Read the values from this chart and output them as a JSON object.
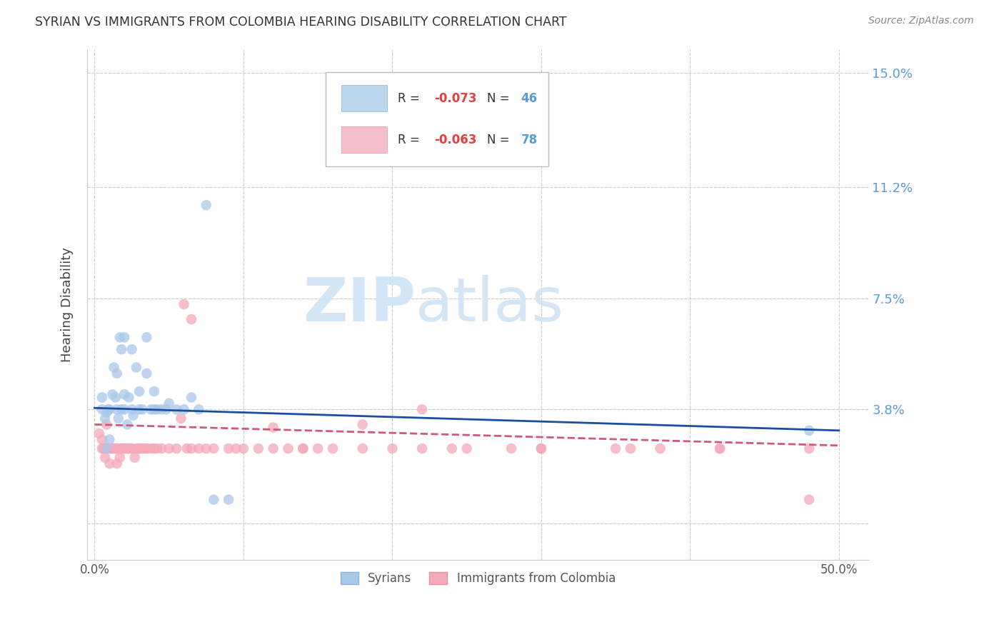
{
  "title": "SYRIAN VS IMMIGRANTS FROM COLOMBIA HEARING DISABILITY CORRELATION CHART",
  "source": "Source: ZipAtlas.com",
  "ylabel": "Hearing Disability",
  "yticks": [
    0.0,
    0.038,
    0.075,
    0.112,
    0.15
  ],
  "ytick_labels": [
    "",
    "3.8%",
    "7.5%",
    "11.2%",
    "15.0%"
  ],
  "xticks": [
    0.0,
    0.1,
    0.2,
    0.3,
    0.4,
    0.5
  ],
  "xtick_labels": [
    "0.0%",
    "",
    "",
    "",
    "",
    "50.0%"
  ],
  "xlim": [
    -0.005,
    0.52
  ],
  "ylim": [
    -0.012,
    0.158
  ],
  "syrians_color": "#a8c8e8",
  "colombia_color": "#f4a8b8",
  "trend_blue": "#1a4fa0",
  "trend_pink": "#d05878",
  "watermark_color": "#d0e4f4",
  "syrians_label": "Syrians",
  "colombia_label": "Immigrants from Colombia",
  "sy_trend_x": [
    0.0,
    0.5
  ],
  "sy_trend_y": [
    0.0385,
    0.031
  ],
  "co_trend_x": [
    0.0,
    0.5
  ],
  "co_trend_y": [
    0.033,
    0.026
  ],
  "syrians_x": [
    0.005,
    0.005,
    0.007,
    0.008,
    0.008,
    0.009,
    0.01,
    0.01,
    0.012,
    0.013,
    0.014,
    0.015,
    0.015,
    0.016,
    0.017,
    0.018,
    0.018,
    0.02,
    0.02,
    0.02,
    0.022,
    0.023,
    0.025,
    0.025,
    0.026,
    0.028,
    0.03,
    0.03,
    0.032,
    0.035,
    0.035,
    0.038,
    0.04,
    0.04,
    0.042,
    0.045,
    0.048,
    0.05,
    0.055,
    0.06,
    0.065,
    0.07,
    0.075,
    0.08,
    0.09,
    0.48
  ],
  "syrians_y": [
    0.038,
    0.042,
    0.035,
    0.037,
    0.025,
    0.038,
    0.038,
    0.028,
    0.043,
    0.052,
    0.042,
    0.05,
    0.038,
    0.035,
    0.062,
    0.058,
    0.038,
    0.038,
    0.043,
    0.062,
    0.033,
    0.042,
    0.038,
    0.058,
    0.036,
    0.052,
    0.038,
    0.044,
    0.038,
    0.05,
    0.062,
    0.038,
    0.038,
    0.044,
    0.038,
    0.038,
    0.038,
    0.04,
    0.038,
    0.038,
    0.042,
    0.038,
    0.106,
    0.008,
    0.008,
    0.031
  ],
  "colombia_x": [
    0.003,
    0.005,
    0.005,
    0.006,
    0.007,
    0.008,
    0.008,
    0.009,
    0.01,
    0.01,
    0.011,
    0.012,
    0.013,
    0.014,
    0.015,
    0.015,
    0.016,
    0.017,
    0.018,
    0.018,
    0.019,
    0.02,
    0.02,
    0.022,
    0.023,
    0.025,
    0.025,
    0.027,
    0.028,
    0.03,
    0.03,
    0.032,
    0.033,
    0.035,
    0.035,
    0.038,
    0.04,
    0.042,
    0.045,
    0.05,
    0.055,
    0.058,
    0.062,
    0.065,
    0.07,
    0.075,
    0.08,
    0.09,
    0.095,
    0.1,
    0.11,
    0.12,
    0.13,
    0.14,
    0.15,
    0.16,
    0.18,
    0.2,
    0.22,
    0.25,
    0.28,
    0.3,
    0.35,
    0.38,
    0.42,
    0.48,
    0.06,
    0.12,
    0.18,
    0.24,
    0.3,
    0.36,
    0.42,
    0.48,
    0.065,
    0.14,
    0.22
  ],
  "colombia_y": [
    0.03,
    0.025,
    0.028,
    0.025,
    0.022,
    0.025,
    0.033,
    0.025,
    0.02,
    0.025,
    0.025,
    0.025,
    0.025,
    0.025,
    0.025,
    0.02,
    0.025,
    0.022,
    0.025,
    0.025,
    0.025,
    0.025,
    0.025,
    0.025,
    0.025,
    0.025,
    0.025,
    0.022,
    0.025,
    0.025,
    0.025,
    0.025,
    0.025,
    0.025,
    0.025,
    0.025,
    0.025,
    0.025,
    0.025,
    0.025,
    0.025,
    0.035,
    0.025,
    0.025,
    0.025,
    0.025,
    0.025,
    0.025,
    0.025,
    0.025,
    0.025,
    0.025,
    0.025,
    0.025,
    0.025,
    0.025,
    0.025,
    0.025,
    0.025,
    0.025,
    0.025,
    0.025,
    0.025,
    0.025,
    0.025,
    0.025,
    0.073,
    0.032,
    0.033,
    0.025,
    0.025,
    0.025,
    0.025,
    0.008,
    0.068,
    0.025,
    0.038
  ]
}
